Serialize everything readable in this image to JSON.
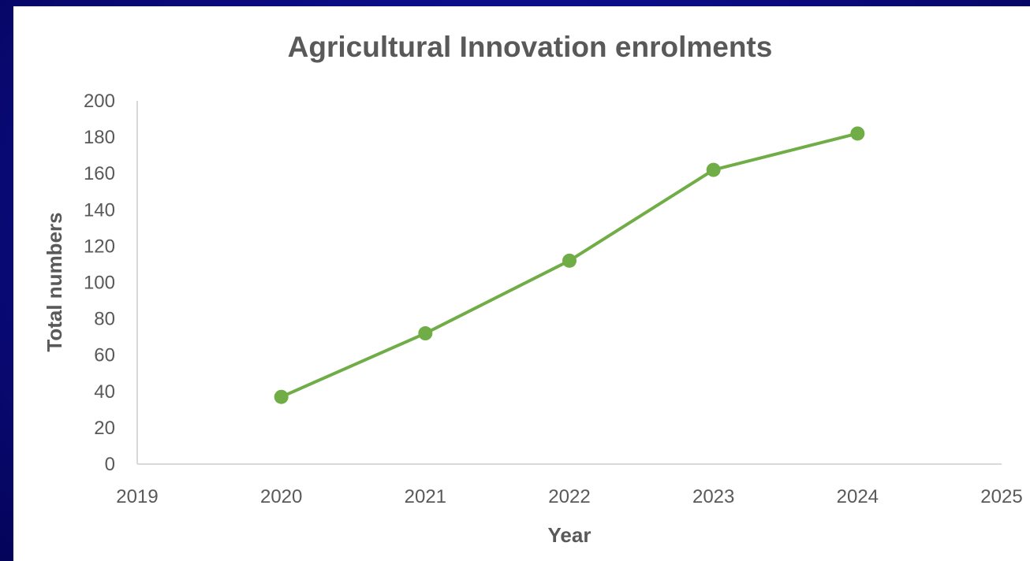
{
  "chart_data": {
    "type": "scatter",
    "title": "Agricultural Innovation enrolments",
    "xlabel": "Year",
    "ylabel": "Total numbers",
    "xlim": [
      2019,
      2025
    ],
    "ylim": [
      0,
      200
    ],
    "x_ticks": [
      "2019",
      "2020",
      "2021",
      "2022",
      "2023",
      "2024",
      "2025"
    ],
    "y_ticks": [
      "0",
      "20",
      "40",
      "60",
      "80",
      "100",
      "120",
      "140",
      "160",
      "180",
      "200"
    ],
    "grid": false,
    "legend": "none",
    "line_color": "#70ad47",
    "marker": "circle",
    "series": [
      {
        "x": [
          2020,
          2021,
          2022,
          2023,
          2024
        ],
        "y": [
          37,
          72,
          112,
          162,
          182
        ]
      }
    ]
  }
}
